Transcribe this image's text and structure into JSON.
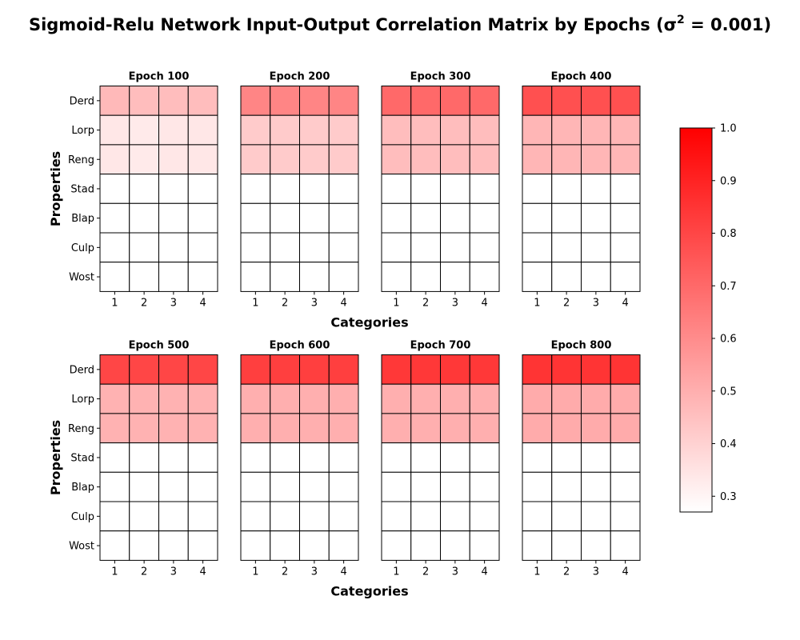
{
  "chart_data": {
    "type": "heatmap",
    "title": "Sigmoid-Relu Network Input-Output Correlation Matrix by Epochs (σ",
    "title_superscript": "2",
    "title_suffix": " = 0.001)",
    "xlabel": "Categories",
    "ylabel": "Properties",
    "rows": [
      "Derd",
      "Lorp",
      "Reng",
      "Stad",
      "Blap",
      "Culp",
      "Wost"
    ],
    "columns": [
      "1",
      "2",
      "3",
      "4"
    ],
    "colorbar": {
      "min": 0.27,
      "max": 1.0,
      "ticks": [
        "0.3",
        "0.4",
        "0.5",
        "0.6",
        "0.7",
        "0.8",
        "0.9",
        "1.0"
      ],
      "color_low": "#ffffff",
      "color_high": "#ff0000"
    },
    "panels": [
      {
        "title": "Epoch 100",
        "values": [
          [
            0.47,
            0.46,
            0.46,
            0.46
          ],
          [
            0.34,
            0.33,
            0.34,
            0.34
          ],
          [
            0.34,
            0.33,
            0.34,
            0.34
          ],
          [
            0.27,
            0.27,
            0.27,
            0.27
          ],
          [
            0.27,
            0.27,
            0.27,
            0.27
          ],
          [
            0.27,
            0.27,
            0.27,
            0.27
          ],
          [
            0.27,
            0.27,
            0.27,
            0.27
          ]
        ]
      },
      {
        "title": "Epoch 200",
        "values": [
          [
            0.62,
            0.62,
            0.62,
            0.62
          ],
          [
            0.42,
            0.42,
            0.42,
            0.42
          ],
          [
            0.42,
            0.42,
            0.42,
            0.42
          ],
          [
            0.27,
            0.27,
            0.27,
            0.27
          ],
          [
            0.27,
            0.27,
            0.27,
            0.27
          ],
          [
            0.27,
            0.27,
            0.27,
            0.27
          ],
          [
            0.27,
            0.27,
            0.27,
            0.27
          ]
        ]
      },
      {
        "title": "Epoch 300",
        "values": [
          [
            0.7,
            0.7,
            0.7,
            0.7
          ],
          [
            0.46,
            0.46,
            0.46,
            0.46
          ],
          [
            0.46,
            0.46,
            0.46,
            0.46
          ],
          [
            0.27,
            0.27,
            0.27,
            0.27
          ],
          [
            0.27,
            0.27,
            0.27,
            0.27
          ],
          [
            0.27,
            0.27,
            0.27,
            0.27
          ],
          [
            0.27,
            0.27,
            0.27,
            0.27
          ]
        ]
      },
      {
        "title": "Epoch 400",
        "values": [
          [
            0.77,
            0.77,
            0.77,
            0.77
          ],
          [
            0.48,
            0.48,
            0.48,
            0.48
          ],
          [
            0.48,
            0.48,
            0.48,
            0.48
          ],
          [
            0.27,
            0.27,
            0.27,
            0.27
          ],
          [
            0.27,
            0.27,
            0.27,
            0.27
          ],
          [
            0.27,
            0.27,
            0.27,
            0.27
          ],
          [
            0.27,
            0.27,
            0.27,
            0.27
          ]
        ]
      },
      {
        "title": "Epoch 500",
        "values": [
          [
            0.8,
            0.8,
            0.8,
            0.8
          ],
          [
            0.49,
            0.49,
            0.49,
            0.49
          ],
          [
            0.49,
            0.49,
            0.49,
            0.49
          ],
          [
            0.27,
            0.27,
            0.27,
            0.27
          ],
          [
            0.27,
            0.27,
            0.27,
            0.27
          ],
          [
            0.27,
            0.27,
            0.27,
            0.27
          ],
          [
            0.27,
            0.27,
            0.27,
            0.27
          ]
        ]
      },
      {
        "title": "Epoch 600",
        "values": [
          [
            0.82,
            0.82,
            0.82,
            0.82
          ],
          [
            0.5,
            0.5,
            0.5,
            0.5
          ],
          [
            0.5,
            0.5,
            0.5,
            0.5
          ],
          [
            0.27,
            0.27,
            0.27,
            0.27
          ],
          [
            0.27,
            0.27,
            0.27,
            0.27
          ],
          [
            0.27,
            0.27,
            0.27,
            0.27
          ],
          [
            0.27,
            0.27,
            0.27,
            0.27
          ]
        ]
      },
      {
        "title": "Epoch 700",
        "values": [
          [
            0.84,
            0.84,
            0.84,
            0.84
          ],
          [
            0.5,
            0.5,
            0.5,
            0.5
          ],
          [
            0.5,
            0.5,
            0.5,
            0.5
          ],
          [
            0.27,
            0.27,
            0.27,
            0.27
          ],
          [
            0.27,
            0.27,
            0.27,
            0.27
          ],
          [
            0.27,
            0.27,
            0.27,
            0.27
          ],
          [
            0.27,
            0.27,
            0.27,
            0.27
          ]
        ]
      },
      {
        "title": "Epoch 800",
        "values": [
          [
            0.85,
            0.85,
            0.85,
            0.85
          ],
          [
            0.51,
            0.51,
            0.51,
            0.51
          ],
          [
            0.51,
            0.51,
            0.51,
            0.51
          ],
          [
            0.27,
            0.27,
            0.27,
            0.27
          ],
          [
            0.27,
            0.27,
            0.27,
            0.27
          ],
          [
            0.27,
            0.27,
            0.27,
            0.27
          ],
          [
            0.27,
            0.27,
            0.27,
            0.27
          ]
        ]
      }
    ]
  }
}
